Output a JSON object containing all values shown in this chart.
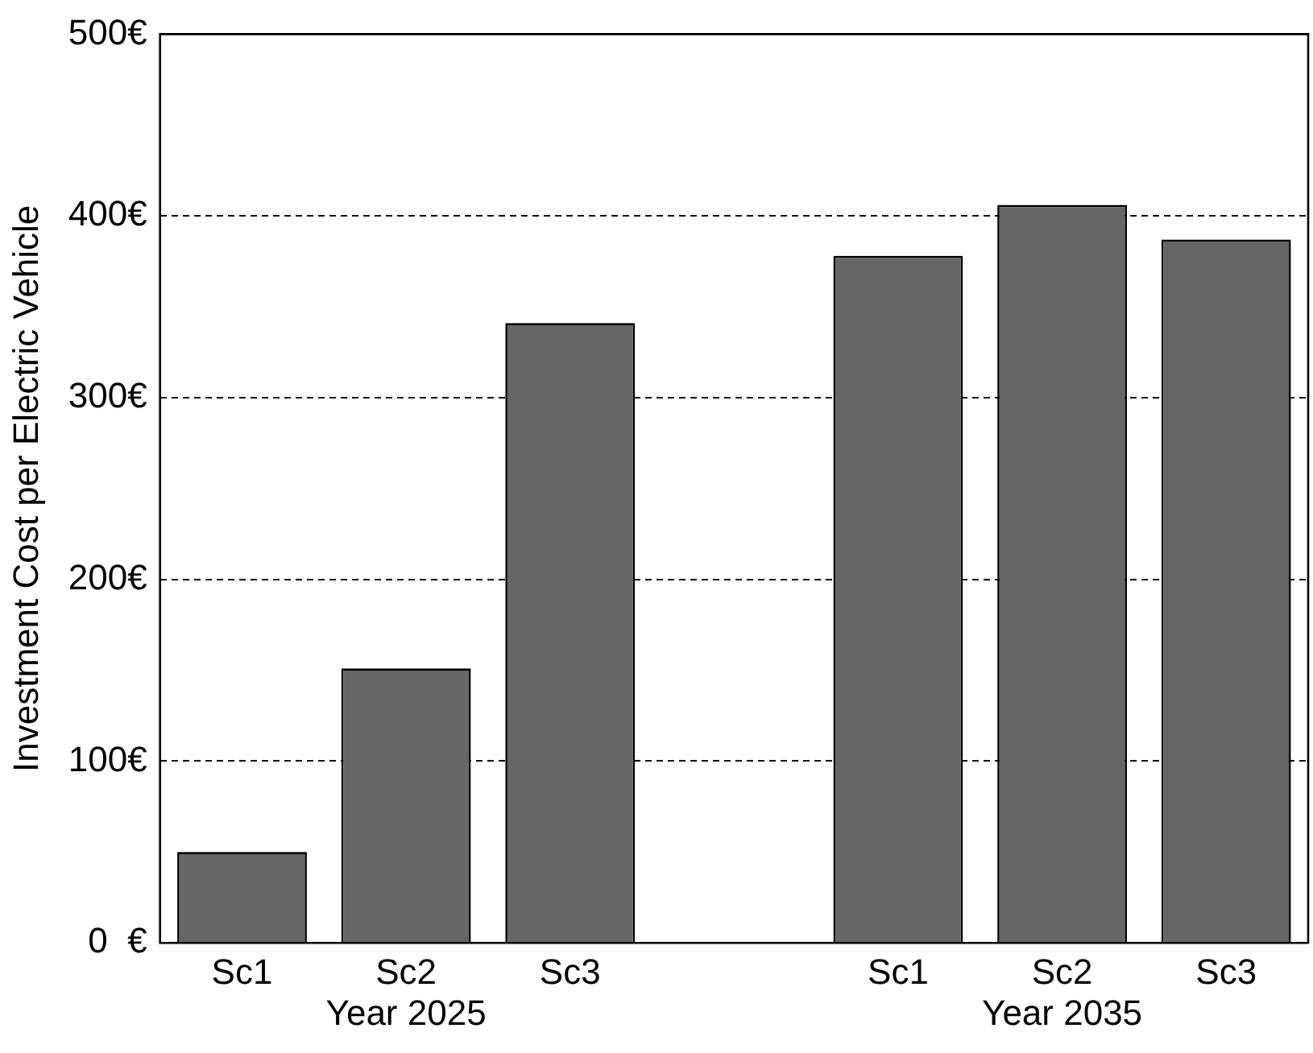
{
  "chart_data": {
    "type": "bar",
    "ylabel": "Investment Cost per Electric Vehicle",
    "categories": [
      "Sc1",
      "Sc2",
      "Sc3",
      null,
      "Sc1",
      "Sc2",
      "Sc3"
    ],
    "values": [
      50,
      151,
      341,
      null,
      378,
      406,
      387
    ],
    "color": "#666666",
    "ylim": [
      0,
      500
    ],
    "yticks": [
      {
        "value": 0,
        "label": "0  €"
      },
      {
        "value": 100,
        "label": "100€"
      },
      {
        "value": 200,
        "label": "200€"
      },
      {
        "value": 300,
        "label": "300€"
      },
      {
        "value": 400,
        "label": "400€"
      },
      {
        "value": 500,
        "label": "500€"
      }
    ],
    "grid": "y",
    "annotations": [
      "Year 2025",
      "Year 2035"
    ]
  }
}
